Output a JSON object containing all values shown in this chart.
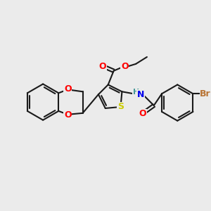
{
  "background_color": "#ebebeb",
  "bond_color": "#1a1a1a",
  "bond_width": 1.5,
  "atom_colors": {
    "O": "#ff0000",
    "N": "#0000ee",
    "S": "#cccc00",
    "Br": "#b87333",
    "H": "#4a9a9a",
    "C": "#1a1a1a"
  },
  "font_size": 9,
  "font_size_small": 8
}
